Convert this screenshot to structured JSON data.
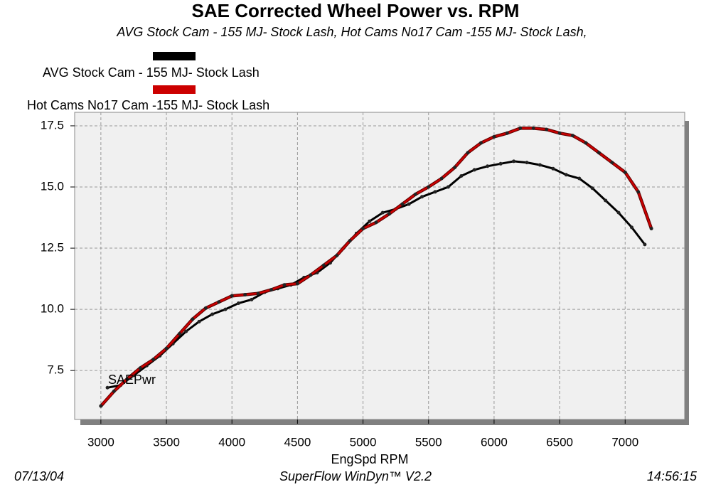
{
  "chart_data": {
    "type": "line",
    "title": "SAE Corrected Wheel Power vs. RPM",
    "subtitle": "AVG Stock Cam - 155 MJ- Stock Lash, Hot Cams No17 Cam -155 MJ- Stock Lash,",
    "x_label": "EngSpd  RPM",
    "annotation": "SAEPwr",
    "xlim": [
      2800,
      7400
    ],
    "xticks": [
      3000,
      3500,
      4000,
      4500,
      5000,
      5500,
      6000,
      6500,
      7000
    ],
    "ylim": [
      5.5,
      18.0
    ],
    "yticks": [
      7.5,
      {
        "value": 10,
        "label": "10.0"
      },
      12.5,
      {
        "value": 15,
        "label": "15.0"
      },
      17.5
    ],
    "grid": true,
    "series": [
      {
        "name": "AVG Stock Cam - 155 MJ- Stock Lash",
        "color": "#000000",
        "x": [
          3050,
          3150,
          3250,
          3350,
          3450,
          3550,
          3650,
          3750,
          3850,
          3950,
          4050,
          4150,
          4250,
          4350,
          4450,
          4550,
          4650,
          4750,
          4850,
          4950,
          5050,
          5150,
          5250,
          5350,
          5450,
          5550,
          5650,
          5750,
          5850,
          5950,
          6050,
          6150,
          6250,
          6350,
          6450,
          6550,
          6650,
          6750,
          6850,
          6950,
          7050,
          7150
        ],
        "values": [
          6.8,
          6.9,
          7.3,
          7.7,
          8.1,
          8.6,
          9.1,
          9.5,
          9.8,
          10.0,
          10.25,
          10.4,
          10.7,
          10.85,
          11.0,
          11.3,
          11.5,
          11.9,
          12.5,
          13.1,
          13.6,
          13.95,
          14.1,
          14.3,
          14.6,
          14.8,
          15.0,
          15.45,
          15.7,
          15.85,
          15.95,
          16.05,
          16.0,
          15.9,
          15.75,
          15.5,
          15.35,
          14.95,
          14.45,
          13.95,
          13.35,
          12.65
        ]
      },
      {
        "name": "Hot Cams No17 Cam -155 MJ- Stock Lash",
        "color": "#cc0000",
        "x": [
          3000,
          3100,
          3200,
          3300,
          3400,
          3500,
          3600,
          3700,
          3800,
          3900,
          4000,
          4100,
          4200,
          4300,
          4400,
          4500,
          4600,
          4700,
          4800,
          4900,
          5000,
          5100,
          5200,
          5300,
          5400,
          5500,
          5600,
          5700,
          5800,
          5900,
          6000,
          6100,
          6200,
          6300,
          6400,
          6500,
          6600,
          6700,
          6800,
          6900,
          7000,
          7100,
          7200
        ],
        "values": [
          6.05,
          6.65,
          7.15,
          7.6,
          7.95,
          8.4,
          9.0,
          9.6,
          10.05,
          10.3,
          10.55,
          10.6,
          10.65,
          10.8,
          11.0,
          11.05,
          11.4,
          11.8,
          12.2,
          12.8,
          13.3,
          13.55,
          13.9,
          14.3,
          14.7,
          15.0,
          15.35,
          15.8,
          16.4,
          16.8,
          17.05,
          17.2,
          17.4,
          17.4,
          17.35,
          17.2,
          17.1,
          16.8,
          16.4,
          16.0,
          15.6,
          14.8,
          13.3
        ]
      }
    ]
  },
  "footer": {
    "date": "07/13/04",
    "software": "SuperFlow WinDyn™ V2.2",
    "time": "14:56:15"
  }
}
